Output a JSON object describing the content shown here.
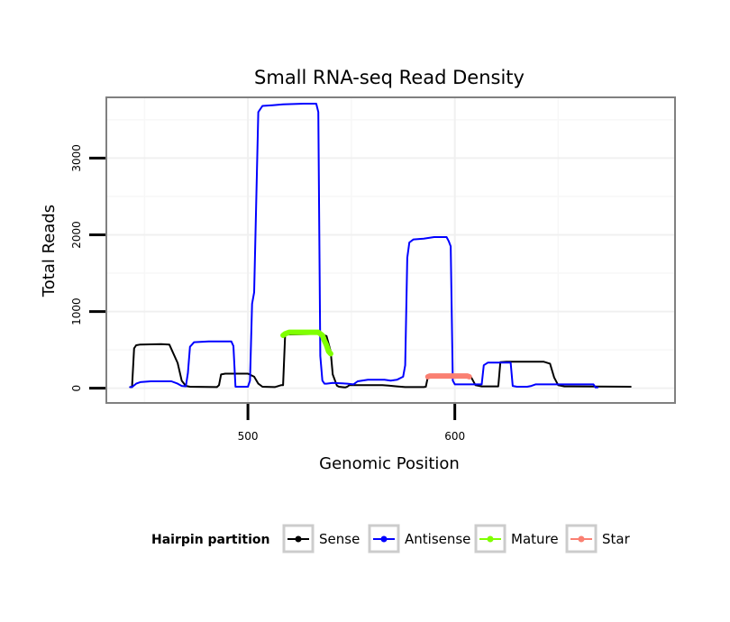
{
  "chart_data": {
    "type": "line",
    "title": "Small RNA-seq Read Density",
    "xlabel": "Genomic Position",
    "ylabel": "Total Reads",
    "xlim": [
      432,
      706
    ],
    "ylim": [
      -180,
      3780
    ],
    "x_ticks": [
      500,
      600
    ],
    "y_ticks": [
      0,
      1000,
      2000,
      3000
    ],
    "grid": true,
    "legend": {
      "title": "Hairpin partition",
      "position": "bottom"
    },
    "series": [
      {
        "name": "Sense",
        "color": "#000000",
        "width": 2,
        "points": [
          [
            443,
            15
          ],
          [
            444,
            15
          ],
          [
            445,
            520
          ],
          [
            446,
            560
          ],
          [
            448,
            570
          ],
          [
            458,
            575
          ],
          [
            462,
            570
          ],
          [
            466,
            330
          ],
          [
            468,
            100
          ],
          [
            470,
            30
          ],
          [
            472,
            20
          ],
          [
            485,
            15
          ],
          [
            486,
            40
          ],
          [
            487,
            180
          ],
          [
            489,
            190
          ],
          [
            500,
            190
          ],
          [
            503,
            150
          ],
          [
            505,
            60
          ],
          [
            507,
            20
          ],
          [
            513,
            15
          ],
          [
            516,
            40
          ],
          [
            517,
            40
          ],
          [
            518,
            700
          ],
          [
            535,
            710
          ],
          [
            538,
            680
          ],
          [
            539,
            580
          ],
          [
            540,
            480
          ],
          [
            541,
            180
          ],
          [
            543,
            35
          ],
          [
            544,
            20
          ],
          [
            547,
            10
          ],
          [
            548,
            20
          ],
          [
            549,
            40
          ],
          [
            565,
            40
          ],
          [
            568,
            35
          ],
          [
            572,
            25
          ],
          [
            576,
            15
          ],
          [
            585,
            15
          ],
          [
            586,
            20
          ],
          [
            587,
            150
          ],
          [
            589,
            160
          ],
          [
            605,
            160
          ],
          [
            608,
            140
          ],
          [
            610,
            40
          ],
          [
            613,
            25
          ],
          [
            621,
            25
          ],
          [
            622,
            340
          ],
          [
            625,
            345
          ],
          [
            643,
            345
          ],
          [
            646,
            320
          ],
          [
            648,
            140
          ],
          [
            650,
            40
          ],
          [
            653,
            25
          ],
          [
            685,
            20
          ]
        ]
      },
      {
        "name": "Antisense",
        "color": "#0000ff",
        "width": 2,
        "points": [
          [
            443,
            15
          ],
          [
            444,
            15
          ],
          [
            446,
            60
          ],
          [
            448,
            80
          ],
          [
            453,
            90
          ],
          [
            463,
            90
          ],
          [
            466,
            60
          ],
          [
            468,
            30
          ],
          [
            470,
            25
          ],
          [
            471,
            200
          ],
          [
            472,
            540
          ],
          [
            474,
            600
          ],
          [
            481,
            610
          ],
          [
            492,
            610
          ],
          [
            493,
            550
          ],
          [
            494,
            20
          ],
          [
            500,
            20
          ],
          [
            501,
            100
          ],
          [
            502,
            1100
          ],
          [
            503,
            1250
          ],
          [
            505,
            3600
          ],
          [
            507,
            3680
          ],
          [
            512,
            3690
          ],
          [
            517,
            3700
          ],
          [
            527,
            3710
          ],
          [
            533,
            3710
          ],
          [
            534,
            3600
          ],
          [
            535,
            420
          ],
          [
            536,
            100
          ],
          [
            537,
            60
          ],
          [
            538,
            60
          ],
          [
            541,
            70
          ],
          [
            548,
            60
          ],
          [
            551,
            50
          ],
          [
            553,
            90
          ],
          [
            558,
            110
          ],
          [
            566,
            110
          ],
          [
            569,
            100
          ],
          [
            572,
            110
          ],
          [
            575,
            150
          ],
          [
            576,
            300
          ],
          [
            577,
            1700
          ],
          [
            578,
            1900
          ],
          [
            580,
            1940
          ],
          [
            585,
            1950
          ],
          [
            590,
            1970
          ],
          [
            596,
            1970
          ],
          [
            597,
            1920
          ],
          [
            598,
            1850
          ],
          [
            599,
            100
          ],
          [
            600,
            50
          ],
          [
            613,
            50
          ],
          [
            614,
            300
          ],
          [
            616,
            335
          ],
          [
            627,
            335
          ],
          [
            628,
            30
          ],
          [
            630,
            20
          ],
          [
            635,
            20
          ],
          [
            637,
            30
          ],
          [
            639,
            50
          ],
          [
            667,
            50
          ],
          [
            668,
            10
          ],
          [
            669,
            10
          ]
        ]
      },
      {
        "name": "Mature",
        "color": "#7fff00",
        "width": 6,
        "points": [
          [
            517,
            690
          ],
          [
            518,
            710
          ],
          [
            520,
            730
          ],
          [
            534,
            730
          ],
          [
            535,
            710
          ],
          [
            536,
            690
          ],
          [
            537,
            620
          ],
          [
            538,
            560
          ],
          [
            539,
            480
          ],
          [
            540,
            450
          ]
        ]
      },
      {
        "name": "Star",
        "color": "#fa8072",
        "width": 6,
        "points": [
          [
            587,
            150
          ],
          [
            588,
            160
          ],
          [
            606,
            160
          ],
          [
            607,
            150
          ]
        ]
      }
    ]
  }
}
